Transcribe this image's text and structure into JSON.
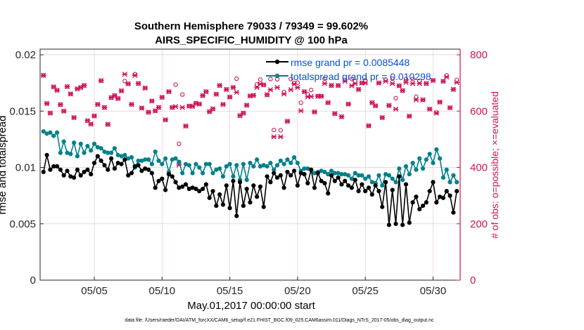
{
  "chart_data": {
    "type": "line",
    "title": "Southern Hemisphere 79033 / 79349 = 99.602%",
    "subtitle": "AIRS_SPECIFIC_HUMIDITY @ 100 hPa",
    "xlabel": "May.01,2017 00:00:00 start",
    "ylabel": "rmse and totalspread",
    "y2label": "# of obs: o=possible; ×=evaluated",
    "footnote": "data file: /Users/raeder/DAI/ATM_forcXX/CAM6_setup/f.e21.FHIST_BGC.f09_025.CAM6assim.011/Diags_NTrS_2017-05/obs_diag_output.nc",
    "xlim": [
      1,
      32
    ],
    "ylim": [
      0,
      0.0205
    ],
    "y2lim": [
      0,
      820
    ],
    "xticks": [
      5,
      10,
      15,
      20,
      25,
      30
    ],
    "xtick_labels": [
      "05/05",
      "05/10",
      "05/15",
      "05/20",
      "05/25",
      "05/30"
    ],
    "yticks": [
      0,
      0.005,
      0.01,
      0.015,
      0.02
    ],
    "ytick_labels": [
      "0",
      "0.005",
      "0.01",
      "0.015",
      "0.02"
    ],
    "y2ticks": [
      0,
      200,
      400,
      600,
      800
    ],
    "y2tick_labels": [
      "0",
      "200",
      "400",
      "600",
      "800"
    ],
    "grid": true,
    "legend_position": "top-right",
    "x": [
      1.25,
      1.5,
      1.75,
      2.0,
      2.25,
      2.5,
      2.75,
      3.0,
      3.25,
      3.5,
      3.75,
      4.0,
      4.25,
      4.5,
      4.75,
      5.0,
      5.25,
      5.5,
      5.75,
      6.0,
      6.25,
      6.5,
      6.75,
      7.0,
      7.25,
      7.5,
      7.75,
      8.0,
      8.25,
      8.5,
      8.75,
      9.0,
      9.25,
      9.5,
      9.75,
      10.0,
      10.25,
      10.5,
      10.75,
      11.0,
      11.25,
      11.5,
      11.75,
      12.0,
      12.25,
      12.5,
      12.75,
      13.0,
      13.25,
      13.5,
      13.75,
      14.0,
      14.25,
      14.5,
      14.75,
      15.0,
      15.25,
      15.5,
      15.75,
      16.0,
      16.25,
      16.5,
      16.75,
      17.0,
      17.25,
      17.5,
      17.75,
      18.0,
      18.25,
      18.5,
      18.75,
      19.0,
      19.25,
      19.5,
      19.75,
      20.0,
      20.25,
      20.5,
      20.75,
      21.0,
      21.25,
      21.5,
      21.75,
      22.0,
      22.25,
      22.5,
      22.75,
      23.0,
      23.25,
      23.5,
      23.75,
      24.0,
      24.25,
      24.5,
      24.75,
      25.0,
      25.25,
      25.5,
      25.75,
      26.0,
      26.25,
      26.5,
      26.75,
      27.0,
      27.25,
      27.5,
      27.75,
      28.0,
      28.25,
      28.5,
      28.75,
      29.0,
      29.25,
      29.5,
      29.75,
      30.0,
      30.25,
      30.5,
      30.75,
      31.0,
      31.25,
      31.5,
      31.75
    ],
    "series": [
      {
        "name": "rmse grand pr = 0.0085448",
        "axis": "left",
        "color": "#000000",
        "values": [
          0.0096,
          0.0111,
          0.0098,
          0.0101,
          0.0101,
          0.0098,
          0.0093,
          0.0097,
          0.0092,
          0.0091,
          0.0098,
          0.0093,
          0.0096,
          0.0098,
          0.0094,
          0.0104,
          0.011,
          0.0106,
          0.0102,
          0.0098,
          0.0108,
          0.0099,
          0.0104,
          0.0103,
          0.0107,
          0.0093,
          0.0095,
          0.0101,
          0.0102,
          0.0097,
          0.0099,
          0.0098,
          0.0095,
          0.0082,
          0.0088,
          0.009,
          0.008,
          0.0094,
          0.0092,
          0.0087,
          0.0082,
          0.0083,
          0.0085,
          0.0081,
          0.0082,
          0.0081,
          0.0079,
          0.0081,
          0.0085,
          0.0073,
          0.0079,
          0.0066,
          0.0076,
          0.0067,
          0.0084,
          0.0064,
          0.0088,
          0.0057,
          0.0087,
          0.0066,
          0.0081,
          0.0069,
          0.0084,
          0.0074,
          0.0083,
          0.0065,
          0.0092,
          0.0087,
          0.0095,
          0.0091,
          0.0093,
          0.0082,
          0.0096,
          0.0093,
          0.0097,
          0.0084,
          0.0095,
          0.0094,
          0.0086,
          0.0098,
          0.0082,
          0.0095,
          0.0088,
          0.0086,
          0.0077,
          0.0093,
          0.0088,
          0.0091,
          0.0085,
          0.0088,
          0.0084,
          0.0082,
          0.0089,
          0.0079,
          0.0085,
          0.0079,
          0.0082,
          0.0076,
          0.0084,
          0.0079,
          0.0065,
          0.0087,
          0.0049,
          0.008,
          0.005,
          0.0092,
          0.0049,
          0.0085,
          0.0051,
          0.0069,
          0.0074,
          0.0063,
          0.0066,
          0.0069,
          0.0079,
          0.0087,
          0.0069,
          0.0074,
          0.0073,
          0.0079,
          0.0075,
          0.006,
          0.0079
        ]
      },
      {
        "name": "totalspread grand pr = 0.010298",
        "axis": "left",
        "color": "#00808a",
        "values": [
          0.0132,
          0.013,
          0.0131,
          0.0128,
          0.0131,
          0.0113,
          0.0123,
          0.0113,
          0.0112,
          0.0122,
          0.011,
          0.0121,
          0.0113,
          0.0119,
          0.0115,
          0.0121,
          0.0118,
          0.0117,
          0.0114,
          0.0113,
          0.0113,
          0.0117,
          0.0111,
          0.011,
          0.0111,
          0.0108,
          0.0109,
          0.01,
          0.0106,
          0.0106,
          0.0107,
          0.0107,
          0.0103,
          0.0114,
          0.0106,
          0.0103,
          0.0108,
          0.0096,
          0.0107,
          0.0108,
          0.0105,
          0.0095,
          0.0103,
          0.0102,
          0.0095,
          0.0103,
          0.01,
          0.0095,
          0.0103,
          0.0103,
          0.0095,
          0.0098,
          0.0099,
          0.0092,
          0.0101,
          0.0103,
          0.0092,
          0.0102,
          0.0089,
          0.0103,
          0.0089,
          0.0104,
          0.0101,
          0.0107,
          0.0101,
          0.0102,
          0.0101,
          0.0104,
          0.0098,
          0.0102,
          0.0106,
          0.0103,
          0.0107,
          0.0104,
          0.0109,
          0.0104,
          0.0097,
          0.0099,
          0.0099,
          0.0098,
          0.0095,
          0.0096,
          0.0097,
          0.0096,
          0.0094,
          0.0097,
          0.0095,
          0.0095,
          0.0094,
          0.0094,
          0.0093,
          0.009,
          0.0095,
          0.0093,
          0.0093,
          0.009,
          0.0092,
          0.0087,
          0.0086,
          0.0093,
          0.0084,
          0.0094,
          0.0093,
          0.009,
          0.0087,
          0.0099,
          0.0089,
          0.0101,
          0.0094,
          0.0104,
          0.0098,
          0.0108,
          0.0099,
          0.0107,
          0.0112,
          0.0104,
          0.0116,
          0.0108,
          0.0091,
          0.0098,
          0.0087,
          0.0093,
          0.0087
        ]
      },
      {
        "name": "obs possible",
        "axis": "right",
        "marker": "o",
        "color": "#cc1458",
        "values": [
          727,
          627,
          593,
          686,
          674,
          623,
          600,
          687,
          661,
          577,
          679,
          684,
          691,
          566,
          554,
          583,
          624,
          708,
          613,
          553,
          648,
          655,
          645,
          672,
          707,
          697,
          624,
          731,
          698,
          611,
          682,
          596,
          636,
          601,
          613,
          649,
          569,
          669,
          613,
          694,
          484,
          659,
          547,
          618,
          617,
          628,
          625,
          655,
          669,
          598,
          608,
          660,
          691,
          624,
          677,
          650,
          684,
          715,
          584,
          593,
          621,
          654,
          656,
          695,
          712,
          693,
          658,
          714,
          533,
          713,
          532,
          668,
          564,
          714,
          700,
          701,
          630,
          669,
          660,
          675,
          597,
          653,
          653,
          715,
          630,
          691,
          591,
          691,
          580,
          711,
          625,
          714,
          706,
          677,
          700,
          709,
          548,
          630,
          619,
          700,
          577,
          712,
          620,
          715,
          646,
          690,
          673,
          714,
          582,
          714,
          651,
          708,
          640,
          698,
          607,
          709,
          595,
          632,
          706,
          727,
          612,
          677,
          711
        ]
      },
      {
        "name": "obs evaluated",
        "axis": "right",
        "marker": "x",
        "color": "#cc1458",
        "values": [
          727,
          627,
          593,
          686,
          674,
          623,
          600,
          687,
          661,
          577,
          679,
          684,
          691,
          566,
          554,
          583,
          624,
          708,
          613,
          553,
          648,
          655,
          645,
          672,
          731,
          697,
          624,
          727,
          698,
          611,
          682,
          596,
          636,
          601,
          613,
          649,
          569,
          669,
          613,
          616,
          409,
          613,
          547,
          618,
          617,
          628,
          625,
          655,
          669,
          598,
          608,
          660,
          691,
          624,
          677,
          650,
          684,
          667,
          584,
          593,
          621,
          654,
          656,
          684,
          696,
          693,
          658,
          676,
          509,
          684,
          509,
          661,
          564,
          676,
          696,
          684,
          601,
          669,
          651,
          652,
          597,
          653,
          653,
          698,
          630,
          691,
          591,
          691,
          580,
          706,
          625,
          690,
          698,
          677,
          700,
          700,
          548,
          630,
          619,
          700,
          577,
          706,
          620,
          698,
          607,
          690,
          673,
          702,
          582,
          698,
          640,
          698,
          640,
          698,
          607,
          709,
          593,
          632,
          706,
          721,
          612,
          677,
          702
        ]
      }
    ]
  }
}
